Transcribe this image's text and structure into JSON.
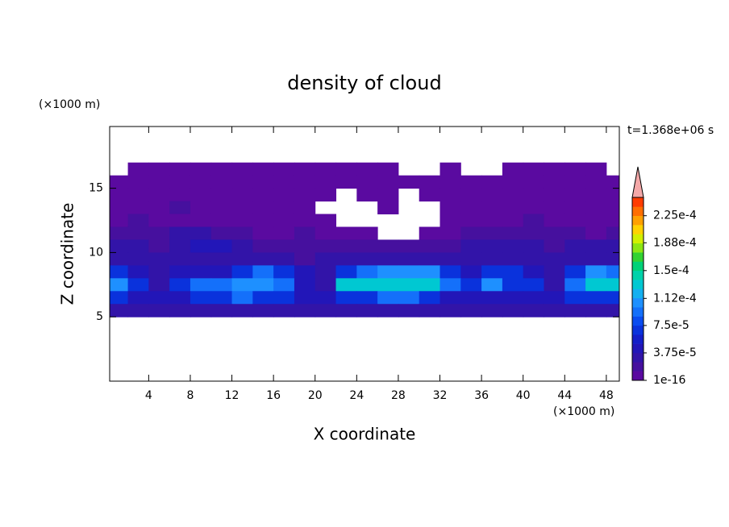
{
  "chart_data": {
    "type": "contour",
    "title": "density of cloud",
    "xlabel": "X coordinate",
    "ylabel": "Z coordinate",
    "xunit": "(×1000 m)",
    "yunit": "(×1000 m)",
    "time_label": "t=1.368e+06 s",
    "xlim": [
      0.25,
      49.25
    ],
    "ylim": [
      0,
      19.8
    ],
    "xticks": [
      4,
      8,
      12,
      16,
      20,
      24,
      28,
      32,
      36,
      40,
      44,
      48
    ],
    "yticks": [
      5,
      10,
      15
    ],
    "x": [
      1,
      3,
      5,
      7,
      9,
      11,
      13,
      15,
      17,
      19,
      21,
      23,
      25,
      27,
      29,
      31,
      33,
      35,
      37,
      39,
      41,
      43,
      45,
      47,
      49
    ],
    "z": [
      16.5,
      15.5,
      14.5,
      13.5,
      12.5,
      11.5,
      10.5,
      9.5,
      8.5,
      7.5,
      6.5,
      5.5
    ],
    "values": [
      [
        null,
        2e-06,
        2e-06,
        2e-06,
        2e-06,
        2e-06,
        2e-06,
        2e-06,
        2e-06,
        2e-06,
        2e-06,
        2e-06,
        2e-06,
        2e-06,
        null,
        null,
        2e-06,
        null,
        null,
        2e-06,
        2e-06,
        2e-06,
        2e-06,
        2e-06,
        null
      ],
      [
        2e-06,
        2e-06,
        2e-06,
        2e-06,
        2e-06,
        2e-06,
        2e-06,
        2e-06,
        2e-06,
        2e-06,
        2e-06,
        2e-06,
        2e-06,
        2e-06,
        2e-06,
        2e-06,
        2e-06,
        2e-06,
        2e-06,
        2e-06,
        2e-06,
        2e-06,
        2e-06,
        2e-06,
        2e-06
      ],
      [
        2e-06,
        2e-06,
        2e-06,
        2e-06,
        2e-06,
        2e-06,
        2e-06,
        2e-06,
        2e-06,
        2e-06,
        2e-06,
        null,
        2e-06,
        2e-06,
        null,
        2e-06,
        2e-06,
        2e-06,
        2e-06,
        2e-06,
        2e-06,
        2e-06,
        2e-06,
        2e-06,
        2e-06
      ],
      [
        2e-06,
        2e-06,
        2e-06,
        1.5e-05,
        2e-06,
        2e-06,
        2e-06,
        2e-06,
        2e-06,
        2e-06,
        null,
        null,
        null,
        2e-06,
        null,
        null,
        2e-06,
        2e-06,
        2e-06,
        2e-06,
        2e-06,
        2e-06,
        2e-06,
        2e-06,
        2e-06
      ],
      [
        2e-06,
        1.5e-05,
        2e-06,
        2e-06,
        2e-06,
        2e-06,
        2e-06,
        2e-06,
        2e-06,
        2e-06,
        2e-06,
        null,
        null,
        null,
        null,
        null,
        2e-06,
        2e-06,
        2e-06,
        2e-06,
        1.5e-05,
        2e-06,
        2e-06,
        2e-06,
        2e-06
      ],
      [
        1.5e-05,
        1.5e-05,
        1.5e-05,
        3e-05,
        3e-05,
        1.5e-05,
        1.5e-05,
        2e-06,
        2e-06,
        1.5e-05,
        2e-06,
        2e-06,
        2e-06,
        null,
        null,
        2e-06,
        2e-06,
        1.5e-05,
        1.5e-05,
        1.5e-05,
        1.5e-05,
        1.5e-05,
        1.5e-05,
        2e-06,
        1.5e-05
      ],
      [
        3e-05,
        3e-05,
        1.5e-05,
        3e-05,
        5e-05,
        5e-05,
        3e-05,
        1.5e-05,
        1.5e-05,
        1.5e-05,
        1.5e-05,
        1.5e-05,
        1.5e-05,
        1.5e-05,
        1.5e-05,
        1.5e-05,
        1.5e-05,
        3e-05,
        3e-05,
        3e-05,
        3e-05,
        1.5e-05,
        3e-05,
        3e-05,
        3e-05
      ],
      [
        3e-05,
        3e-05,
        3e-05,
        3e-05,
        3e-05,
        3e-05,
        3e-05,
        3e-05,
        3e-05,
        1.5e-05,
        3e-05,
        3e-05,
        3e-05,
        3e-05,
        3e-05,
        3e-05,
        3e-05,
        3e-05,
        3e-05,
        3e-05,
        3e-05,
        3e-05,
        3e-05,
        3e-05,
        3e-05
      ],
      [
        7e-05,
        5e-05,
        3e-05,
        5e-05,
        5e-05,
        5e-05,
        7e-05,
        9e-05,
        7e-05,
        5e-05,
        3e-05,
        7e-05,
        9e-05,
        0.00011,
        0.00011,
        0.00011,
        7e-05,
        5e-05,
        7e-05,
        7e-05,
        5e-05,
        3e-05,
        7e-05,
        0.00011,
        9e-05
      ],
      [
        0.00011,
        7e-05,
        3e-05,
        7e-05,
        9e-05,
        9e-05,
        0.00011,
        0.00011,
        9e-05,
        5e-05,
        3e-05,
        0.000135,
        0.000135,
        0.000135,
        0.000135,
        0.000135,
        9e-05,
        7e-05,
        0.00011,
        7e-05,
        7e-05,
        3e-05,
        9e-05,
        0.000135,
        0.000135
      ],
      [
        7e-05,
        5e-05,
        5e-05,
        5e-05,
        7e-05,
        7e-05,
        9e-05,
        7e-05,
        7e-05,
        5e-05,
        5e-05,
        7e-05,
        7e-05,
        9e-05,
        9e-05,
        7e-05,
        5e-05,
        5e-05,
        5e-05,
        5e-05,
        5e-05,
        5e-05,
        7e-05,
        7e-05,
        7e-05
      ],
      [
        3e-05,
        3e-05,
        3e-05,
        3e-05,
        3e-05,
        3e-05,
        3e-05,
        3e-05,
        3e-05,
        3e-05,
        3e-05,
        3e-05,
        3e-05,
        3e-05,
        3e-05,
        3e-05,
        3e-05,
        3e-05,
        3e-05,
        3e-05,
        3e-05,
        3e-05,
        3e-05,
        3e-05,
        3e-05
      ]
    ],
    "colorbar": {
      "lim": [
        1e-16,
        0.00025
      ],
      "colors": [
        "#5a0aa0",
        "#46109e",
        "#3214a8",
        "#2216b8",
        "#141ec8",
        "#0a32dc",
        "#0a4cf0",
        "#1470fa",
        "#1e90ff",
        "#14b0f0",
        "#00c8d2",
        "#00d2aa",
        "#00d278",
        "#32d232",
        "#8ce614",
        "#d2f000",
        "#ffd200",
        "#ffa000",
        "#ff6e00",
        "#ff3c00"
      ],
      "extend": "max",
      "extend_color": "#f4a8a8",
      "ticks": [
        {
          "value": 1e-16,
          "label": "1e-16"
        },
        {
          "value": 3.75e-05,
          "label": "3.75e-5"
        },
        {
          "value": 7.5e-05,
          "label": "7.5e-5"
        },
        {
          "value": 0.000112,
          "label": "1.12e-4"
        },
        {
          "value": 0.00015,
          "label": "1.5e-4"
        },
        {
          "value": 0.000188,
          "label": "1.88e-4"
        },
        {
          "value": 0.000225,
          "label": "2.25e-4"
        }
      ]
    }
  }
}
